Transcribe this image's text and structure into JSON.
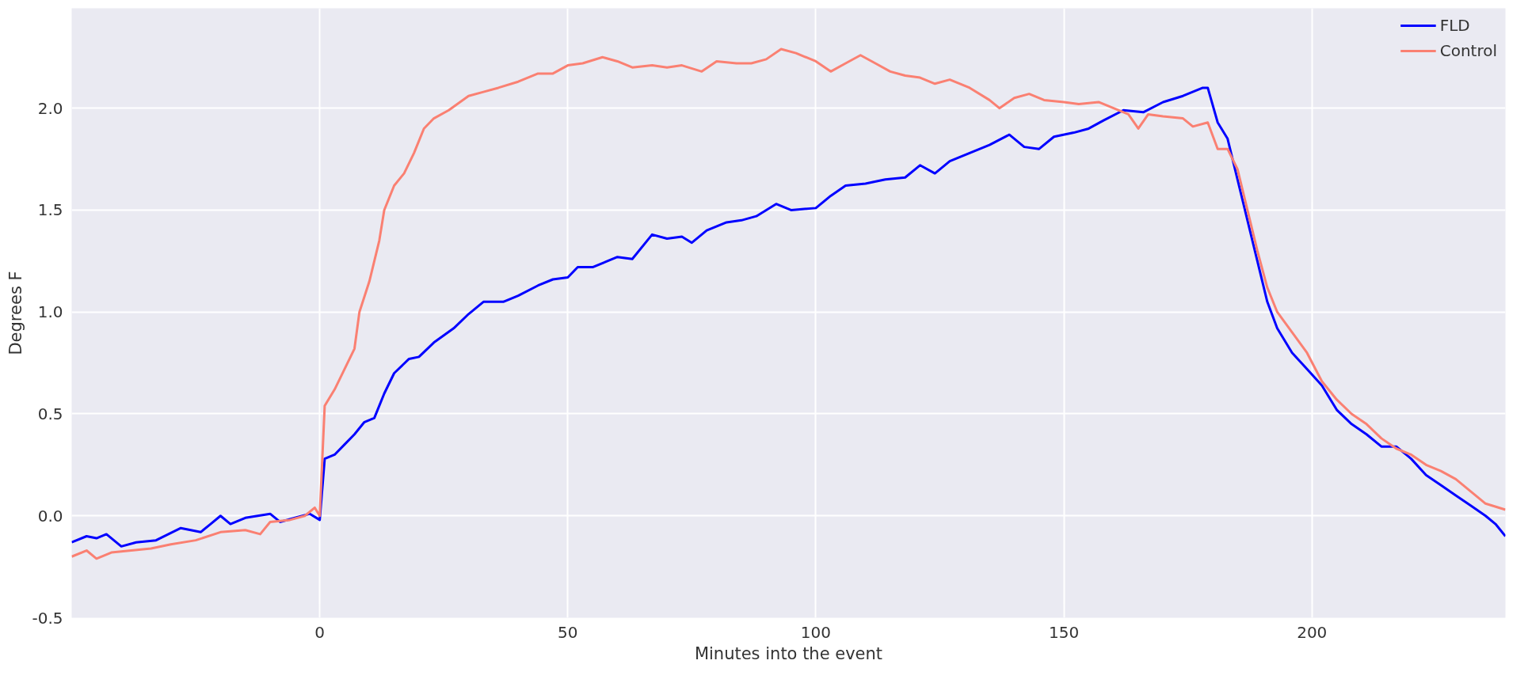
{
  "chart_data": {
    "type": "line",
    "xlabel": "Minutes into the event",
    "ylabel": "Degrees F",
    "xlim": [
      -50,
      239
    ],
    "ylim": [
      -0.5,
      2.49
    ],
    "xticks": [
      0,
      50,
      100,
      150,
      200
    ],
    "yticks": [
      {
        "value": -0.5,
        "label": "-0.5"
      },
      {
        "value": 0,
        "label": "0.0"
      },
      {
        "value": 0.5,
        "label": "0.5"
      },
      {
        "value": 1,
        "label": "1.0"
      },
      {
        "value": 1.5,
        "label": "1.5"
      },
      {
        "value": 2,
        "label": "2.0"
      }
    ],
    "grid": true,
    "legend": "top right",
    "line_style": "solid",
    "marker": "none",
    "series": [
      {
        "name": "FLD",
        "color": "#0000ff",
        "x": [
          -50,
          -47,
          -45,
          -43,
          -40,
          -37,
          -33,
          -28,
          -24,
          -22,
          -20,
          -18,
          -15,
          -10,
          -8,
          -5,
          -2,
          0,
          1,
          3,
          5,
          7,
          9,
          11,
          13,
          15,
          18,
          20,
          23,
          27,
          30,
          33,
          37,
          40,
          44,
          47,
          50,
          52,
          55,
          60,
          63,
          67,
          70,
          73,
          75,
          78,
          82,
          85,
          88,
          92,
          95,
          100,
          103,
          106,
          110,
          114,
          118,
          121,
          124,
          127,
          131,
          135,
          139,
          142,
          145,
          148,
          152,
          155,
          158,
          162,
          166,
          170,
          174,
          178,
          179,
          181,
          183,
          185,
          187,
          189,
          191,
          193,
          196,
          199,
          202,
          205,
          208,
          211,
          214,
          217,
          220,
          223,
          226,
          229,
          232,
          235,
          237,
          239
        ],
        "values": [
          -0.13,
          -0.1,
          -0.11,
          -0.09,
          -0.15,
          -0.13,
          -0.12,
          -0.06,
          -0.08,
          -0.04,
          0.0,
          -0.04,
          -0.01,
          0.01,
          -0.03,
          -0.01,
          0.01,
          -0.02,
          0.28,
          0.3,
          0.35,
          0.4,
          0.46,
          0.48,
          0.6,
          0.7,
          0.77,
          0.78,
          0.85,
          0.92,
          0.99,
          1.05,
          1.05,
          1.08,
          1.13,
          1.16,
          1.17,
          1.22,
          1.22,
          1.27,
          1.26,
          1.38,
          1.36,
          1.37,
          1.34,
          1.4,
          1.44,
          1.45,
          1.47,
          1.53,
          1.5,
          1.51,
          1.57,
          1.62,
          1.63,
          1.65,
          1.66,
          1.72,
          1.68,
          1.74,
          1.78,
          1.82,
          1.87,
          1.81,
          1.8,
          1.86,
          1.88,
          1.9,
          1.94,
          1.99,
          1.98,
          2.03,
          2.06,
          2.1,
          2.1,
          1.93,
          1.85,
          1.65,
          1.45,
          1.25,
          1.05,
          0.92,
          0.8,
          0.72,
          0.64,
          0.52,
          0.45,
          0.4,
          0.34,
          0.34,
          0.28,
          0.2,
          0.15,
          0.1,
          0.05,
          0.0,
          -0.04,
          -0.1
        ]
      },
      {
        "name": "Control",
        "color": "#fa8072",
        "x": [
          -50,
          -47,
          -45,
          -42,
          -38,
          -34,
          -30,
          -25,
          -20,
          -15,
          -12,
          -10,
          -6,
          -3,
          -1,
          0,
          1,
          3,
          5,
          7,
          8,
          10,
          12,
          13,
          15,
          17,
          19,
          21,
          23,
          26,
          30,
          33,
          36,
          40,
          44,
          47,
          50,
          53,
          57,
          60,
          63,
          67,
          70,
          73,
          77,
          80,
          84,
          87,
          90,
          93,
          96,
          100,
          103,
          106,
          109,
          112,
          115,
          118,
          121,
          124,
          127,
          131,
          135,
          137,
          140,
          143,
          146,
          150,
          153,
          157,
          160,
          163,
          165,
          167,
          170,
          174,
          176,
          179,
          181,
          183,
          185,
          187,
          189,
          191,
          193,
          196,
          199,
          202,
          205,
          208,
          211,
          214,
          217,
          220,
          223,
          226,
          229,
          232,
          235,
          239
        ],
        "values": [
          -0.2,
          -0.17,
          -0.21,
          -0.18,
          -0.17,
          -0.16,
          -0.14,
          -0.12,
          -0.08,
          -0.07,
          -0.09,
          -0.03,
          -0.02,
          0.0,
          0.04,
          0.0,
          0.54,
          0.62,
          0.72,
          0.82,
          1.0,
          1.15,
          1.35,
          1.5,
          1.62,
          1.68,
          1.78,
          1.9,
          1.95,
          1.99,
          2.06,
          2.08,
          2.1,
          2.13,
          2.17,
          2.17,
          2.21,
          2.22,
          2.25,
          2.23,
          2.2,
          2.21,
          2.2,
          2.21,
          2.18,
          2.23,
          2.22,
          2.22,
          2.24,
          2.29,
          2.27,
          2.23,
          2.18,
          2.22,
          2.26,
          2.22,
          2.18,
          2.16,
          2.15,
          2.12,
          2.14,
          2.1,
          2.04,
          2.0,
          2.05,
          2.07,
          2.04,
          2.03,
          2.02,
          2.03,
          2.0,
          1.97,
          1.9,
          1.97,
          1.96,
          1.95,
          1.91,
          1.93,
          1.8,
          1.8,
          1.7,
          1.5,
          1.3,
          1.12,
          1.0,
          0.9,
          0.8,
          0.66,
          0.57,
          0.5,
          0.45,
          0.38,
          0.33,
          0.3,
          0.25,
          0.22,
          0.18,
          0.12,
          0.06,
          0.03
        ]
      }
    ]
  }
}
